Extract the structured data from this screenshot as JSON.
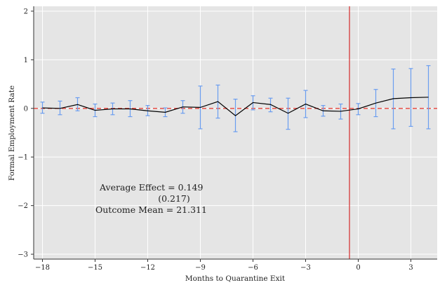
{
  "chart_data": {
    "type": "line",
    "xlabel": "Months to Quarantine Exit",
    "ylabel": "Formal Employment Rate",
    "xlim": [
      -18.5,
      4.5
    ],
    "ylim": [
      -3.1,
      2.1
    ],
    "xticks": [
      -18,
      -15,
      -12,
      -9,
      -6,
      -3,
      0,
      3
    ],
    "xtick_labels": [
      "−18",
      "−15",
      "−12",
      "−9",
      "−6",
      "−3",
      "0",
      "3"
    ],
    "yticks": [
      2,
      1,
      0,
      -1,
      -2,
      -3
    ],
    "ytick_labels": [
      "2",
      "1",
      "0",
      "−1",
      "−2",
      "−3"
    ],
    "grid": true,
    "background": "#e5e5e5",
    "colors": {
      "line": "#000000",
      "error_bars": "#6a9df0",
      "zero_line": "#e8423a",
      "exit_line": "#d42a2a"
    },
    "reference_lines": {
      "horizontal_dashed_y": 0,
      "vertical_x": -0.5
    },
    "series": [
      {
        "x": [
          -18,
          -17,
          -16,
          -15,
          -14,
          -13,
          -12,
          -11,
          -10,
          -9,
          -8,
          -7,
          -6,
          -5,
          -4,
          -3,
          -2,
          -1,
          0,
          1,
          2,
          3,
          4
        ],
        "y": [
          0.01,
          0.0,
          0.08,
          -0.04,
          -0.01,
          -0.01,
          -0.05,
          -0.08,
          0.03,
          0.02,
          0.14,
          -0.15,
          0.12,
          0.08,
          -0.1,
          0.09,
          -0.05,
          -0.06,
          -0.01,
          0.11,
          0.2,
          0.22,
          0.23
        ],
        "ci_low": [
          -0.1,
          -0.13,
          -0.05,
          -0.17,
          -0.13,
          -0.17,
          -0.15,
          -0.17,
          -0.1,
          -0.42,
          -0.2,
          -0.48,
          -0.03,
          -0.07,
          -0.43,
          -0.19,
          -0.16,
          -0.22,
          -0.13,
          -0.17,
          -0.42,
          -0.37,
          -0.42
        ],
        "ci_high": [
          0.13,
          0.15,
          0.22,
          0.09,
          0.11,
          0.16,
          0.06,
          0.01,
          0.16,
          0.46,
          0.48,
          0.19,
          0.26,
          0.21,
          0.21,
          0.37,
          0.06,
          0.09,
          0.1,
          0.39,
          0.81,
          0.82,
          0.88
        ],
        "error_bar_from_x": -18,
        "error_bar_to_x": 4
      }
    ],
    "annotations": {
      "average_effect": "Average Effect = 0.149",
      "average_effect_se": "(0.217)",
      "outcome_mean": "Outcome Mean = 21.311"
    }
  }
}
